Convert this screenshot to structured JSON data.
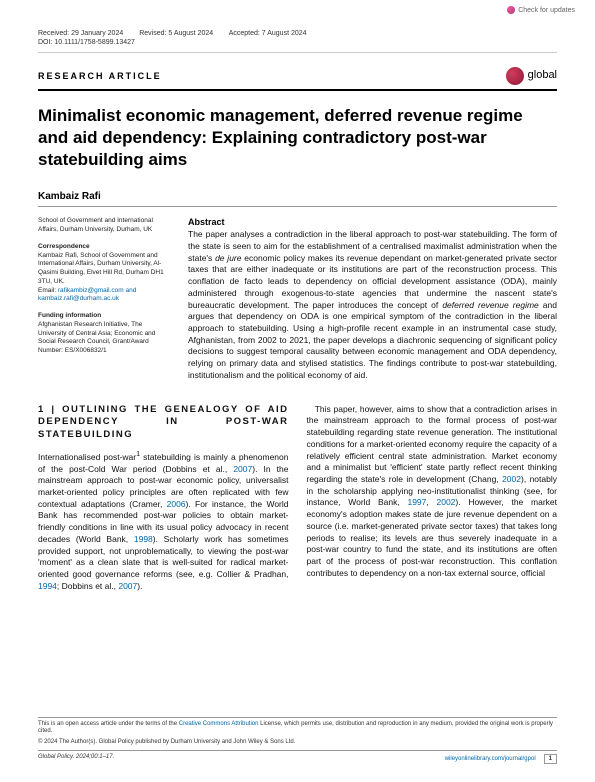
{
  "check_updates_label": "Check for updates",
  "meta": {
    "received": "Received: 29 January 2024",
    "revised": "Revised: 5 August 2024",
    "accepted": "Accepted: 7 August 2024",
    "doi": "DOI: 10.1111/1758-5899.13427"
  },
  "article_type": "RESEARCH ARTICLE",
  "journal_name": "global",
  "title": "Minimalist economic management, deferred revenue regime and aid dependency: Explaining contradictory post-war statebuilding aims",
  "author": "Kambaiz Rafi",
  "affiliation": "School of Government and International Affairs, Durham University, Durham, UK",
  "correspondence_heading": "Correspondence",
  "correspondence_body": "Kambaiz Rafi, School of Government and International Affairs, Durham University, Al-Qasimi Building, Elvet Hill Rd, Durham DH1 3TU, UK.",
  "correspondence_email_label": "Email: ",
  "correspondence_emails": "rafikambiz@gmail.com and kambaiz.rafi@durham.ac.uk",
  "funding_heading": "Funding information",
  "funding_body": "Afghanistan Research Initiative, The University of Central Asia; Economic and Social Research Council, Grant/Award Number: ES/X006832/1",
  "abstract_heading": "Abstract",
  "abstract_body_1": "The paper analyses a contradiction in the liberal approach to post-war statebuilding. The form of the state is seen to aim for the establishment of a centralised maximalist administration when the state's ",
  "abstract_body_dejure": "de jure",
  "abstract_body_2": " economic policy makes its revenue dependant on market-generated private sector taxes that are either inadequate or its institutions are part of the reconstruction process. This conflation de facto leads to dependency on official development assistance (ODA), mainly administered through exogenous-to-state agencies that undermine the nascent state's bureaucratic development. The paper introduces the concept of ",
  "abstract_body_drr": "deferred revenue regime",
  "abstract_body_3": " and argues that dependency on ODA is one empirical symptom of the contradiction in the liberal approach to statebuilding. Using a high-profile recent example in an instrumental case study, Afghanistan, from 2002 to 2021, the paper develops a diachronic sequencing of significant policy decisions to suggest temporal causality between economic management and ODA dependency, relying on primary data and stylised statistics. The findings contribute to post-war statebuilding, institutionalism and the political economy of aid.",
  "section_heading": "1 | OUTLINING THE GENEALOGY OF AID DEPENDENCY IN POST-WAR STATEBUILDING",
  "col1": {
    "p1a": "Internationalised post-war",
    "p1sup": "1",
    "p1b": " statebuilding is mainly a phenomenon of the post-Cold War period (Dobbins et al., ",
    "c1": "2007",
    "p1c": "). In the mainstream approach to post-war economic policy, universalist market-oriented policy principles are often replicated with few contextual adaptations (Cramer, ",
    "c2": "2006",
    "p1d": "). For instance, the World Bank has recommended post-war policies to obtain market-friendly conditions in line with its usual policy advocacy in recent decades (World Bank, ",
    "c3": "1998",
    "p1e": "). Scholarly work has sometimes provided support, not unproblematically, to viewing the post-war 'moment' as a clean slate that is well-suited for radical market-oriented good governance reforms (see, e.g. Collier & Pradhan, ",
    "c4": "1994",
    "p1f": "; Dobbins et al., ",
    "c5": "2007",
    "p1g": ")."
  },
  "col2": {
    "p1a": "This paper, however, aims to show that a contradiction arises in the mainstream approach to the formal process of post-war statebuilding regarding state revenue generation. The institutional conditions for a market-oriented economy require the capacity of a relatively efficient central state administration. Market economy and a minimalist but 'efficient' state partly reflect recent thinking regarding the state's role in development (Chang, ",
    "c1": "2002",
    "p1b": "), notably in the scholarship applying neo-institutionalist thinking (see, for instance, World Bank, ",
    "c2": "1997",
    "p1c": ", ",
    "c3": "2002",
    "p1d": "). However, the market economy's adoption makes state de jure revenue dependent on a source (i.e. market-generated private sector taxes) that takes long periods to realise; its levels are thus severely inadequate in a post-war country to fund the state, and its institutions are often part of the process of post-war reconstruction. This conflation contributes to dependency on a non-tax external source, official"
  },
  "footer": {
    "license1": "This is an open access article under the terms of the ",
    "license_link": "Creative Commons Attribution",
    "license2": " License, which permits use, distribution and reproduction in any medium, provided the original work is properly cited.",
    "copyright": "© 2024 The Author(s). Global Policy published by Durham University and John Wiley & Sons Ltd.",
    "journal_ref": "Global Policy. 2024;00:1–17.",
    "url": "wileyonlinelibrary.com/journal/gpol",
    "page": "1"
  },
  "colors": {
    "citation": "#0066a8",
    "logo": "#a8243f"
  }
}
